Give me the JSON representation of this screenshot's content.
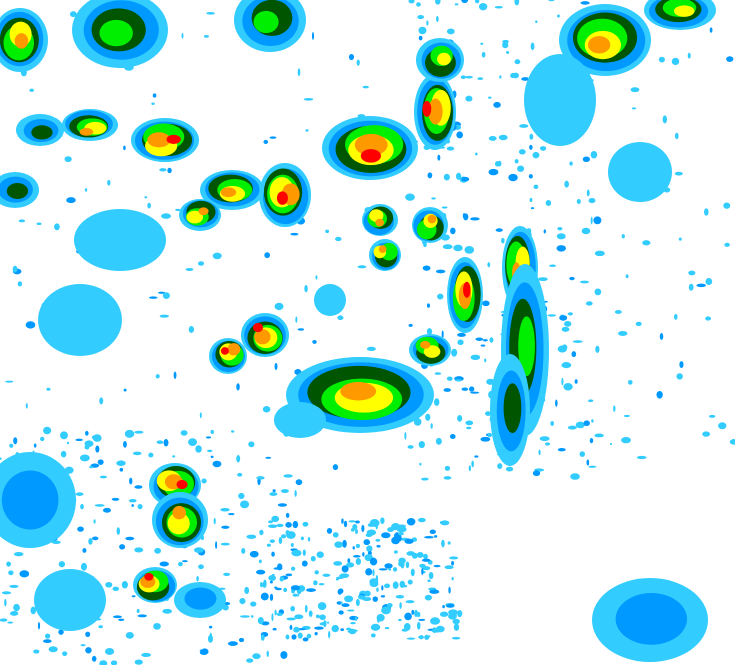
{
  "map": {
    "background": "#ffffff",
    "intensity_colors": [
      "#33ccff",
      "#0099ff",
      "#005500",
      "#00ee00",
      "#ffff00",
      "#ff9900",
      "#ff0000"
    ]
  }
}
